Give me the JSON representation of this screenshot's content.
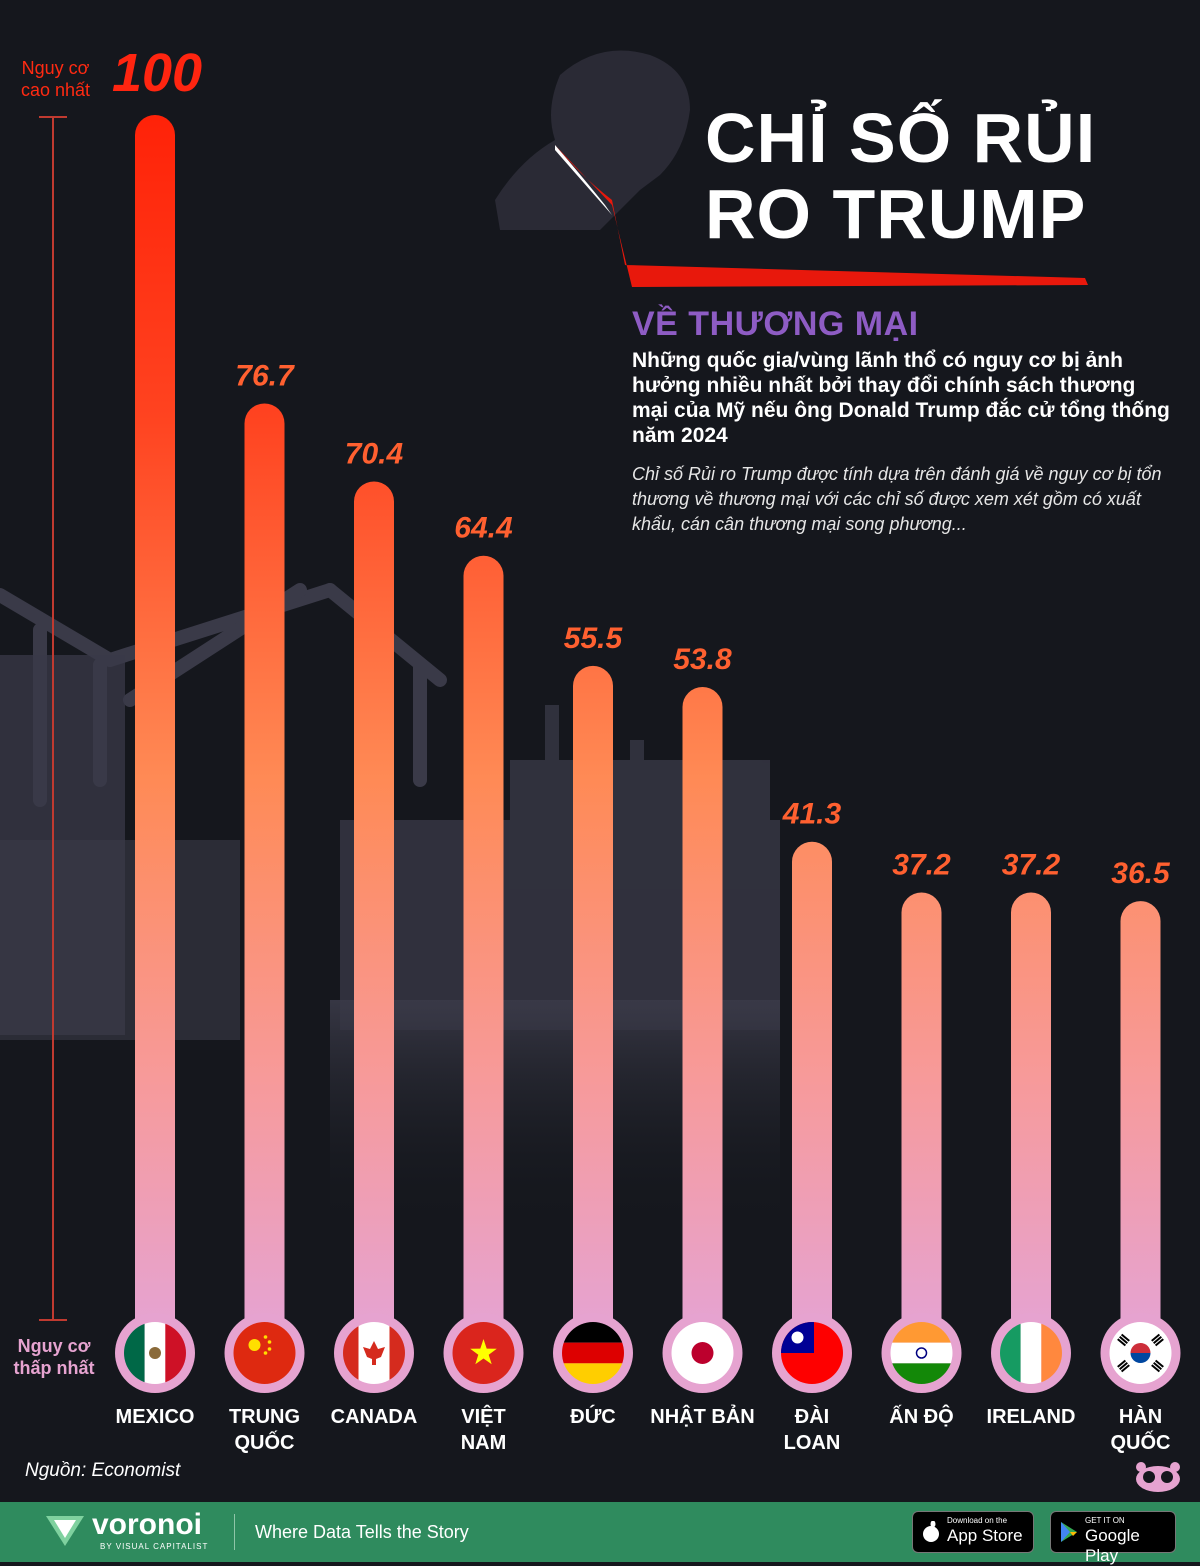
{
  "title": "CHỈ SỐ RỦI RO TRUMP",
  "subtitle_label": "VỀ THƯƠNG MẠI",
  "subtitle": "Những quốc gia/vùng lãnh thổ có nguy cơ bị ảnh hưởng nhiều nhất bởi thay đổi chính sách thương mại của Mỹ nếu ông Donald Trump đắc cử tổng thống năm 2024",
  "description": "Chỉ số Rủi ro Trump được tính dựa trên đánh giá về nguy cơ bị tổn thương về thương mại với các chỉ số được xem xét gồm có xuất khẩu, cán cân thương mại song phương...",
  "axis": {
    "high_label": "Nguy cơ cao nhất",
    "low_label": "Nguy cơ thấp nhất"
  },
  "chart_data": {
    "type": "bar",
    "title": "CHỈ SỐ RỦI RO TRUMP",
    "xlabel": "",
    "ylabel": "",
    "ylim": [
      0,
      100
    ],
    "categories": [
      "MEXICO",
      "TRUNG QUỐC",
      "CANADA",
      "VIỆT NAM",
      "ĐỨC",
      "NHẬT BẢN",
      "ĐÀI LOAN",
      "ẤN ĐỘ",
      "IRELAND",
      "HÀN QUỐC"
    ],
    "category_lines": [
      [
        "MEXICO"
      ],
      [
        "TRUNG",
        "QUỐC"
      ],
      [
        "CANADA"
      ],
      [
        "VIỆT",
        "NAM"
      ],
      [
        "ĐỨC"
      ],
      [
        "NHẬT BẢN"
      ],
      [
        "ĐÀI",
        "LOAN"
      ],
      [
        "ẤN ĐỘ"
      ],
      [
        "IRELAND"
      ],
      [
        "HÀN",
        "QUỐC"
      ]
    ],
    "values": [
      100,
      76.7,
      70.4,
      64.4,
      55.5,
      53.8,
      41.3,
      37.2,
      37.2,
      36.5
    ],
    "value_labels": [
      "100",
      "76.7",
      "70.4",
      "64.4",
      "55.5",
      "53.8",
      "41.3",
      "37.2",
      "37.2",
      "36.5"
    ],
    "flags": [
      "mexico-flag-icon",
      "china-flag-icon",
      "canada-flag-icon",
      "vietnam-flag-icon",
      "germany-flag-icon",
      "japan-flag-icon",
      "taiwan-flag-icon",
      "india-flag-icon",
      "ireland-flag-icon",
      "south-korea-flag-icon"
    ]
  },
  "colors": {
    "background": "#15171d",
    "bar_top": "#ff2208",
    "bar_mid": "#ff8a55",
    "bar_bottom": "#e6a3d0",
    "accent_purple": "#8e5cc4",
    "footer_green": "#2f8b5e"
  },
  "source": "Nguồn: Economist",
  "footer": {
    "brand": "voronoi",
    "brand_sub": "BY VISUAL CAPITALIST",
    "tagline": "Where Data Tells the Story",
    "app_store": {
      "small": "Download on the",
      "big": "App Store"
    },
    "google_play": {
      "small": "GET IT ON",
      "big": "Google Play"
    }
  }
}
